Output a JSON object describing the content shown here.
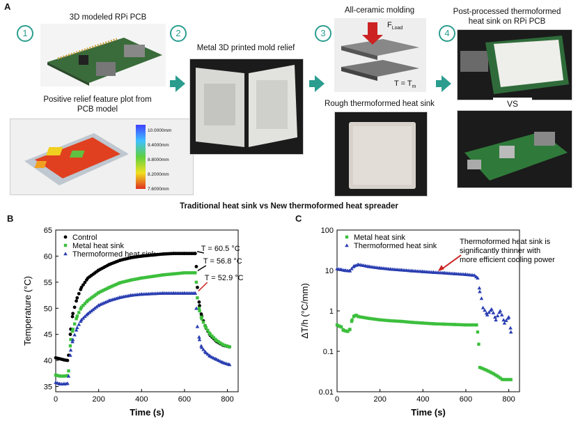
{
  "panel_labels": {
    "a": "A",
    "b": "B",
    "c": "C"
  },
  "steps": [
    "1",
    "2",
    "3",
    "4"
  ],
  "captions": {
    "pcb_model": "3D modeled RPi PCB",
    "relief_plot": "Positive relief feature plot from PCB model",
    "mold": "Metal 3D printed mold relief",
    "molding": "All-ceramic molding",
    "rough": "Rough thermoformed heat sink",
    "post": "Post-processed thermoformed heat sink on RPi PCB",
    "vs": "VS"
  },
  "molding_labels": {
    "force": "F",
    "force_sub": "Load",
    "temp": "T = T",
    "temp_sub": "m"
  },
  "colorbar_ticks": [
    "10.0000mm",
    "9.4000mm",
    "8.8000mm",
    "8.2000mm",
    "7.6000mm"
  ],
  "figure_title": "Traditional heat sink vs New thermoformed  heat spreader",
  "colors": {
    "control": "#000000",
    "metal": "#3dbf3d",
    "thermo": "#2a3eb1",
    "accent": "#2a9d8f",
    "red_arrow": "#cc2222"
  },
  "chart_data": [
    {
      "type": "scatter",
      "panel": "B",
      "xlabel": "Time (s)",
      "ylabel": "Temperature (°C)",
      "xlim": [
        0,
        850
      ],
      "ylim": [
        34,
        65
      ],
      "xticks": [
        "0",
        "200",
        "400",
        "600",
        "800"
      ],
      "yticks": [
        "35",
        "40",
        "45",
        "50",
        "55",
        "60",
        "65"
      ],
      "legend_position": "top-left",
      "series": [
        {
          "name": "Control",
          "x": [
            0,
            20,
            40,
            55,
            60,
            70,
            80,
            100,
            120,
            150,
            200,
            250,
            300,
            350,
            400,
            450,
            500,
            550,
            600,
            640,
            650,
            655,
            660,
            670,
            680,
            700,
            720,
            750,
            780,
            810
          ],
          "y": [
            40.5,
            40.3,
            40.1,
            40.0,
            41,
            46,
            49,
            52,
            54,
            55.8,
            57.3,
            58.4,
            59.2,
            59.7,
            60.0,
            60.2,
            60.4,
            60.5,
            60.5,
            60.5,
            60.5,
            58,
            54,
            50.5,
            48.5,
            46.2,
            44.8,
            43.6,
            42.9,
            42.6
          ]
        },
        {
          "name": "Metal heat sink",
          "x": [
            0,
            20,
            40,
            55,
            60,
            70,
            80,
            100,
            120,
            150,
            200,
            250,
            300,
            350,
            400,
            450,
            500,
            550,
            600,
            640,
            650,
            655,
            660,
            670,
            680,
            700,
            720,
            750,
            780,
            810
          ],
          "y": [
            37.2,
            37.0,
            37.0,
            37.1,
            38,
            44,
            46,
            48.5,
            50.2,
            51.5,
            53.0,
            54.0,
            54.9,
            55.4,
            55.8,
            56.1,
            56.4,
            56.6,
            56.8,
            56.8,
            56.8,
            55,
            52,
            49.5,
            48,
            46.3,
            45,
            43.8,
            43,
            42.6
          ]
        },
        {
          "name": "Thermoformed heat sink",
          "x": [
            0,
            20,
            40,
            55,
            60,
            70,
            80,
            100,
            120,
            150,
            200,
            250,
            300,
            350,
            400,
            450,
            500,
            550,
            600,
            640,
            650,
            655,
            660,
            670,
            680,
            700,
            720,
            750,
            780,
            810
          ],
          "y": [
            35.8,
            35.5,
            35.5,
            35.6,
            37,
            42,
            44,
            46.3,
            47.8,
            49,
            50.6,
            51.5,
            52.1,
            52.5,
            52.7,
            52.8,
            52.9,
            52.9,
            52.9,
            52.9,
            52.9,
            50,
            46.5,
            44,
            42.5,
            41.5,
            40.8,
            40.2,
            39.6,
            39.2
          ]
        }
      ],
      "annotations": [
        "T = 60.5 °C",
        "T = 56.8 °C",
        "T = 52.9 °C"
      ]
    },
    {
      "type": "scatter",
      "panel": "C",
      "xlabel": "Time (s)",
      "ylabel": "ΔT/h (°C/mm)",
      "xlim": [
        0,
        850
      ],
      "ylim": [
        0.01,
        100
      ],
      "yscale": "log",
      "xticks": [
        "0",
        "200",
        "400",
        "600",
        "800"
      ],
      "yticks": [
        "0.01",
        "0.1",
        "1",
        "10",
        "100"
      ],
      "legend_position": "top-left",
      "series": [
        {
          "name": "Metal heat sink",
          "x": [
            0,
            10,
            20,
            30,
            40,
            50,
            60,
            70,
            80,
            90,
            100,
            150,
            200,
            250,
            300,
            350,
            400,
            450,
            500,
            550,
            600,
            640,
            650,
            655,
            660,
            665,
            770,
            790,
            810
          ],
          "y": [
            0.45,
            0.42,
            0.4,
            0.33,
            0.32,
            0.31,
            0.35,
            0.6,
            0.75,
            0.78,
            0.72,
            0.65,
            0.6,
            0.57,
            0.55,
            0.52,
            0.5,
            0.48,
            0.47,
            0.46,
            0.45,
            0.45,
            0.45,
            0.3,
            0.15,
            0.04,
            0.02,
            0.02,
            0.02
          ]
        },
        {
          "name": "Thermoformed heat sink",
          "x": [
            0,
            20,
            40,
            60,
            80,
            100,
            150,
            200,
            250,
            300,
            350,
            400,
            450,
            500,
            550,
            600,
            640,
            655,
            665,
            680,
            700,
            720,
            740,
            760,
            780,
            800,
            810
          ],
          "y": [
            11,
            10.5,
            10,
            9.8,
            13,
            14,
            12.5,
            11.5,
            10.8,
            10.3,
            9.8,
            9.4,
            9.0,
            8.7,
            8.3,
            8.0,
            7.6,
            6.5,
            3,
            1.2,
            0.8,
            1.1,
            0.6,
            1.0,
            0.5,
            0.7,
            0.3
          ]
        }
      ],
      "annotations": [
        "Thermoformed heat sink is significantly thinner with more efficient cooling power"
      ]
    }
  ]
}
